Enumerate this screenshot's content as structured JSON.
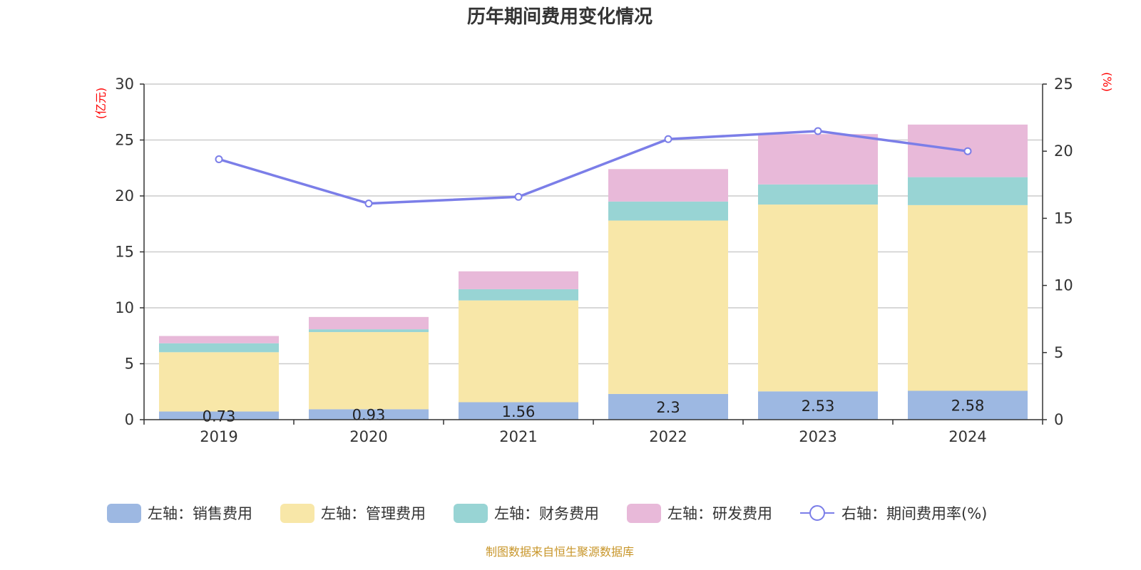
{
  "chart_data": {
    "type": "bar",
    "title": "历年期间费用变化情况",
    "categories": [
      "2019",
      "2020",
      "2021",
      "2022",
      "2023",
      "2024"
    ],
    "left_axis": {
      "unit": "(亿元)",
      "ylim": [
        0,
        30
      ],
      "ticks": [
        0,
        5,
        10,
        15,
        20,
        25,
        30
      ]
    },
    "right_axis": {
      "unit": "(%)",
      "ylim": [
        0,
        25
      ],
      "ticks": [
        0,
        5,
        10,
        15,
        20,
        25
      ]
    },
    "series": [
      {
        "name": "左轴：销售费用",
        "type": "bar",
        "stack": "left",
        "color": "#9db8e2",
        "values": [
          0.73,
          0.93,
          1.56,
          2.3,
          2.53,
          2.58
        ]
      },
      {
        "name": "左轴：管理费用",
        "type": "bar",
        "stack": "left",
        "color": "#f8e7a8",
        "values": [
          5.3,
          6.9,
          9.1,
          15.5,
          16.7,
          16.6
        ]
      },
      {
        "name": "左轴：财务费用",
        "type": "bar",
        "stack": "left",
        "color": "#98d4d4",
        "values": [
          0.8,
          0.25,
          1.0,
          1.7,
          1.8,
          2.5
        ]
      },
      {
        "name": "左轴：研发费用",
        "type": "bar",
        "stack": "left",
        "color": "#e8b9d9",
        "values": [
          0.65,
          1.1,
          1.6,
          2.9,
          4.5,
          4.7
        ]
      },
      {
        "name": "右轴：期间费用率(%)",
        "type": "line",
        "axis": "right",
        "color": "#7b7ee8",
        "values": [
          19.4,
          16.1,
          16.6,
          20.9,
          21.5,
          20.0
        ]
      }
    ],
    "bar_labels": [
      "0.73",
      "0.93",
      "1.56",
      "2.3",
      "2.53",
      "2.58"
    ],
    "grid": true,
    "legend_position": "bottom"
  },
  "source_note": "制图数据来自恒生聚源数据库"
}
